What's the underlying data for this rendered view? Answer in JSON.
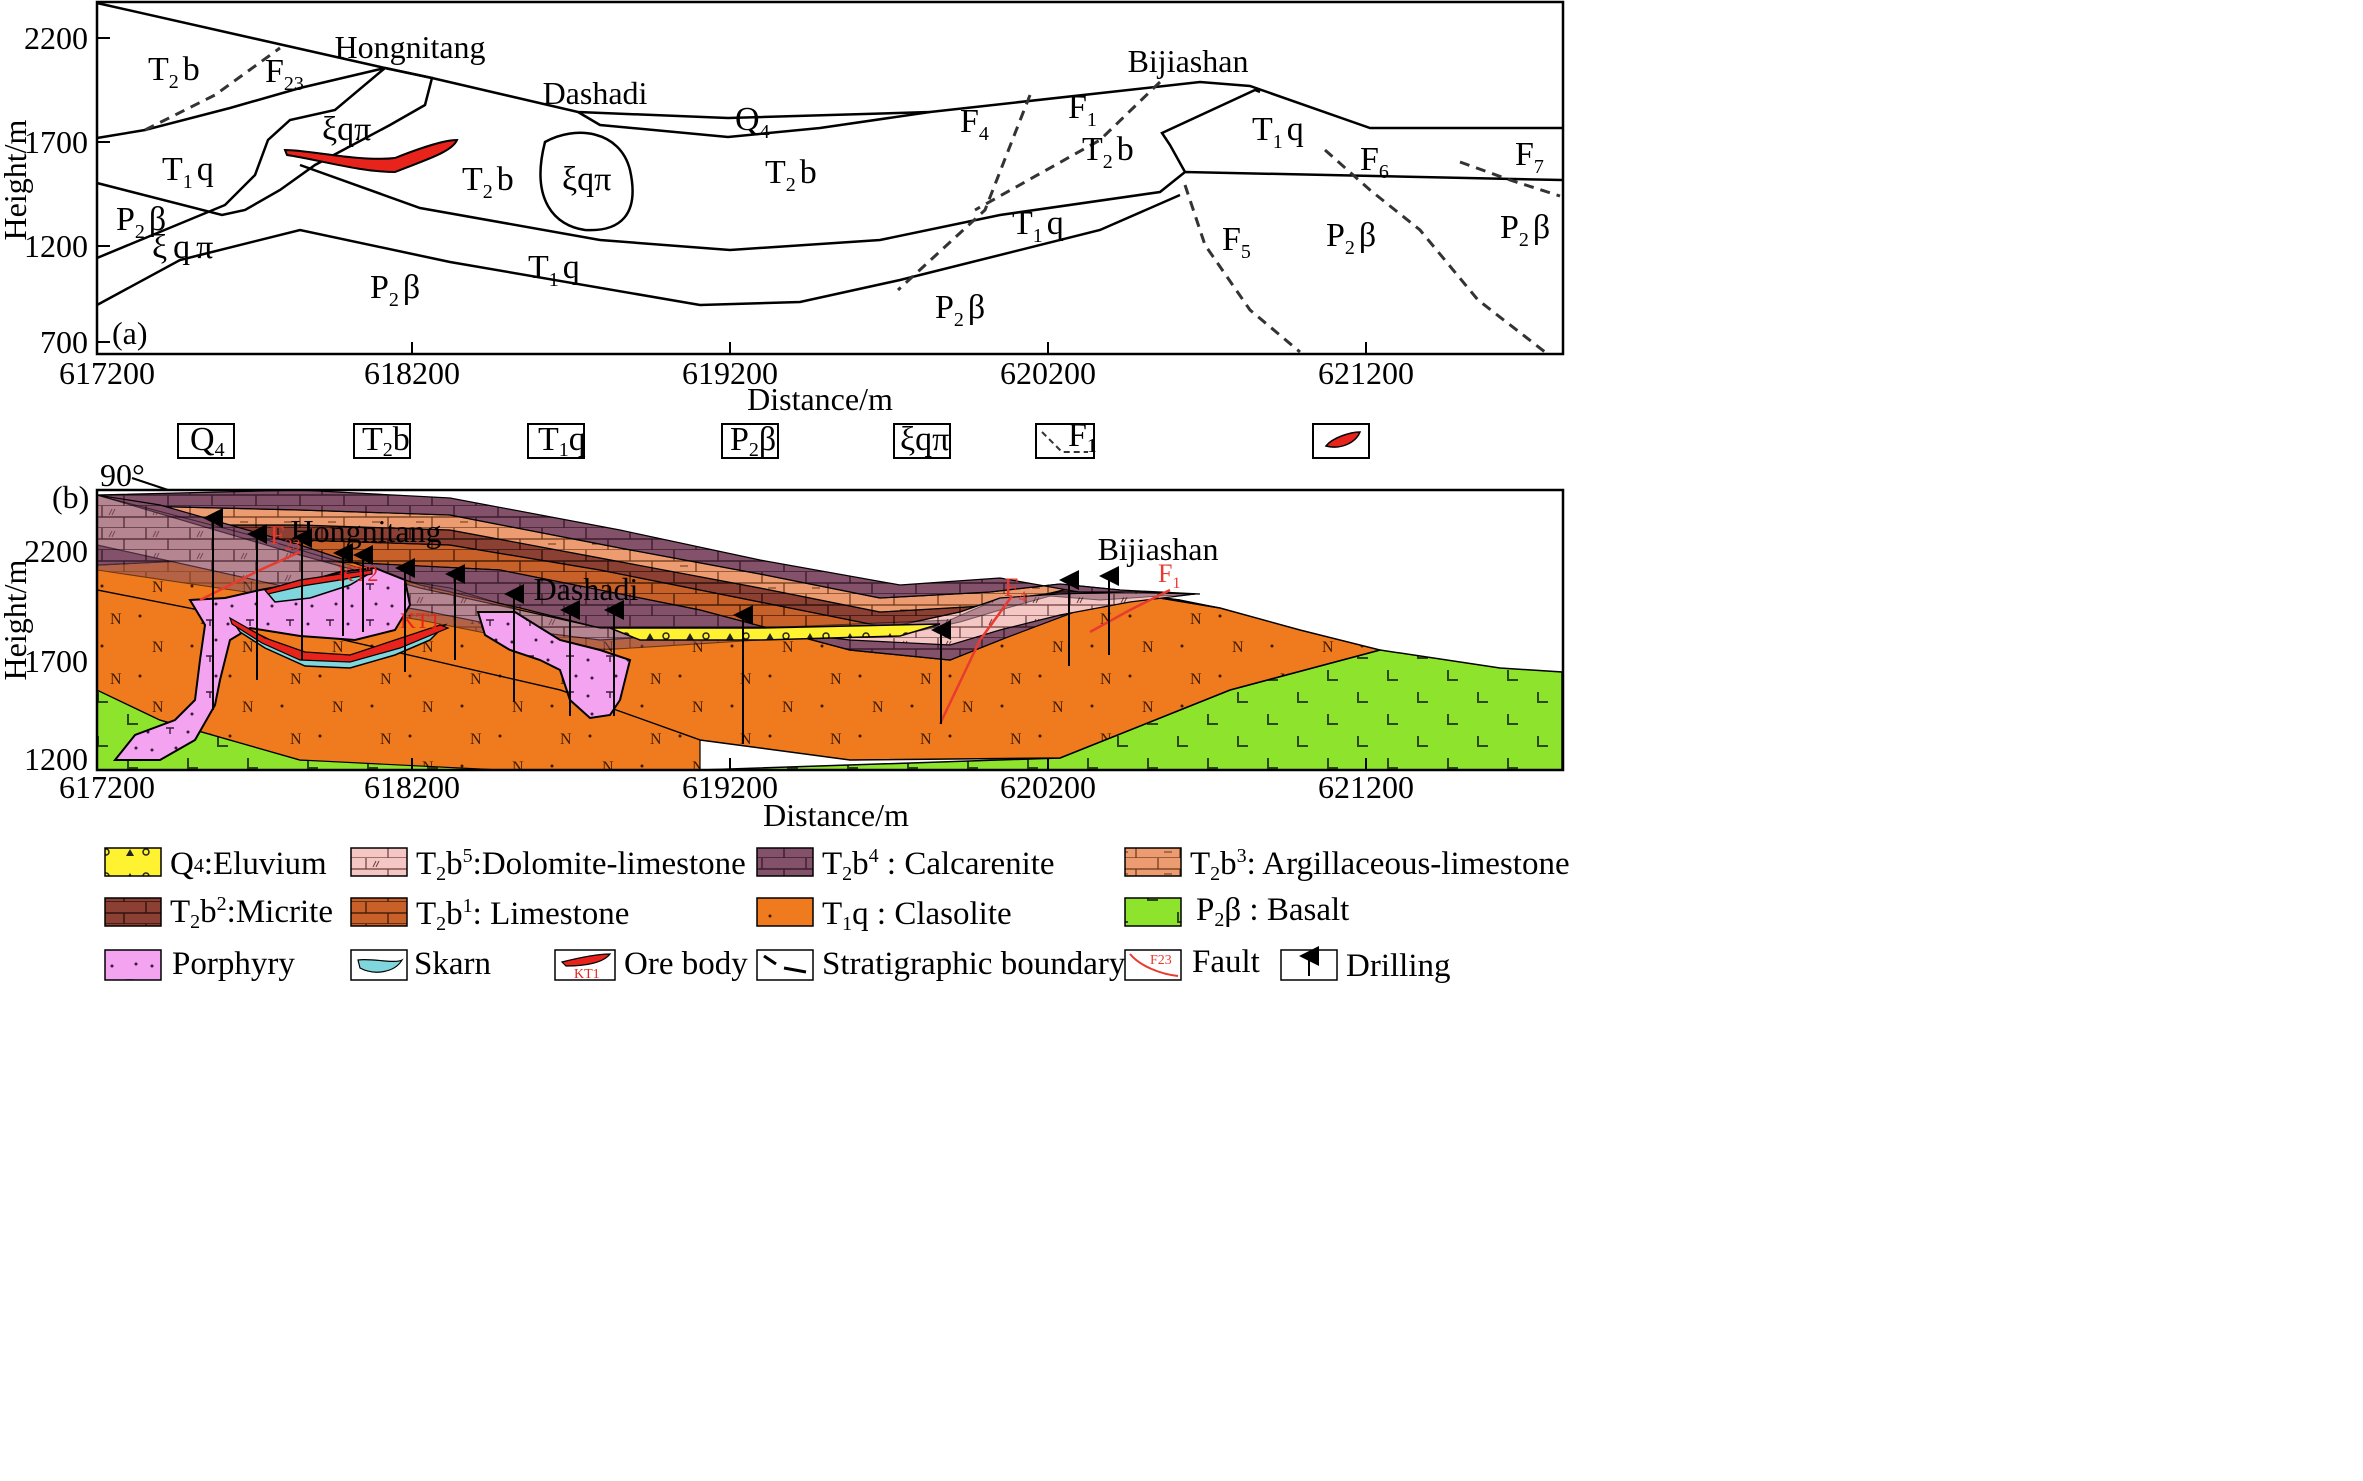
{
  "panel_a": {
    "label": "(a)",
    "xlabel": "Distance/m",
    "ylabel": "Height/m",
    "x_ticks": [
      "617200",
      "618200",
      "619200",
      "620200",
      "621200"
    ],
    "y_ticks": [
      "2200",
      "1700",
      "1200",
      "700"
    ],
    "locations": [
      "Hongnitang",
      "Dashadi",
      "Bijiashan"
    ],
    "units": [
      {
        "main": "T",
        "sub": "2",
        "rest": "b"
      },
      {
        "main": "T",
        "sub": "1",
        "rest": "q"
      },
      {
        "main": "P",
        "sub": "2",
        "rest": "β"
      },
      {
        "main": "ξqπ",
        "sub": "",
        "rest": ""
      },
      {
        "main": "Q",
        "sub": "4",
        "rest": ""
      }
    ],
    "faults": [
      {
        "main": "F",
        "sub": "23"
      },
      {
        "main": "F",
        "sub": "1"
      },
      {
        "main": "F",
        "sub": "4"
      },
      {
        "main": "F",
        "sub": "5"
      },
      {
        "main": "F",
        "sub": "6"
      },
      {
        "main": "F",
        "sub": "7"
      }
    ]
  },
  "legend_a": [
    {
      "main": "Q",
      "sub": "4",
      "rest": ""
    },
    {
      "main": "T",
      "sub": "2",
      "rest": "b"
    },
    {
      "main": "T",
      "sub": "1",
      "rest": "q"
    },
    {
      "main": "P",
      "sub": "2",
      "rest": "β"
    },
    {
      "main": "ξqπ",
      "sub": "",
      "rest": ""
    },
    {
      "main": "F",
      "sub": "1",
      "rest": ""
    }
  ],
  "panel_b": {
    "label": "(b)",
    "dip": "90°",
    "xlabel": "Distance/m",
    "ylabel": "Height/m",
    "x_ticks": [
      "617200",
      "618200",
      "619200",
      "620200",
      "621200"
    ],
    "y_ticks": [
      "2200",
      "1700",
      "1200"
    ],
    "locations": [
      "Hongnitang",
      "Dashadi",
      "Bijiashan"
    ],
    "faults": [
      {
        "main": "F",
        "sub": "23"
      },
      {
        "main": "F",
        "sub": "4"
      },
      {
        "main": "F",
        "sub": "1"
      }
    ],
    "ore_bodies": [
      "KT1",
      "KT2"
    ]
  },
  "legend_b": [
    {
      "code": "Q",
      "sup": "",
      "sub": "4",
      "rest": "",
      "sep": ":",
      "desc": "Eluvium"
    },
    {
      "code": "T",
      "sup": "5",
      "sub": "2",
      "rest": "b",
      "sep": ":",
      "desc": "Dolomite-limestone"
    },
    {
      "code": "T",
      "sup": "4",
      "sub": "2",
      "rest": "b",
      "sep": " : ",
      "desc": "Calcarenite"
    },
    {
      "code": "T",
      "sup": "3",
      "sub": "2",
      "rest": "b",
      "sep": ": ",
      "desc": "Argillaceous-limestone"
    },
    {
      "code": "T",
      "sup": "2",
      "sub": "2",
      "rest": "b",
      "sep": ":",
      "desc": "Micrite"
    },
    {
      "code": "T",
      "sup": "1",
      "sub": "2",
      "rest": "b",
      "sep": ": ",
      "desc": "Limestone"
    },
    {
      "code": "T",
      "sup": "",
      "sub": "1",
      "rest": "q",
      "sep": " : ",
      "desc": "Clasolite"
    },
    {
      "code": "P",
      "sup": "",
      "sub": "2",
      "rest": "β",
      "sep": " : ",
      "desc": "Basalt"
    },
    {
      "code": "",
      "sup": "",
      "sub": "",
      "rest": "",
      "sep": "",
      "desc": "Porphyry"
    },
    {
      "code": "",
      "sup": "",
      "sub": "",
      "rest": "",
      "sep": "",
      "desc": "Skarn"
    },
    {
      "code": "",
      "sup": "",
      "sub": "",
      "rest": "",
      "sep": "",
      "desc": "Ore body",
      "swatch_text": "KT1"
    },
    {
      "code": "",
      "sup": "",
      "sub": "",
      "rest": "",
      "sep": "",
      "desc": "Stratigraphic boundary"
    },
    {
      "code": "",
      "sup": "",
      "sub": "",
      "rest": "",
      "sep": "",
      "desc": "Fault",
      "swatch_text": "F23"
    },
    {
      "code": "",
      "sup": "",
      "sub": "",
      "rest": "",
      "sep": "",
      "desc": "Drilling"
    }
  ],
  "colors": {
    "clasolite": "#f07a1e",
    "basalt": "#8ee42c",
    "porphyry": "#f3a3f0",
    "eluvium": "#fff230",
    "calcarenite": "#84516a",
    "dolomite": "#f4c6c4",
    "argillaceous": "#ec9c70",
    "micrite": "#8c3f33",
    "limestone": "#c8602a",
    "skarn": "#7fd6dd",
    "ore": "#e8231c",
    "fault": "#e83b30"
  }
}
